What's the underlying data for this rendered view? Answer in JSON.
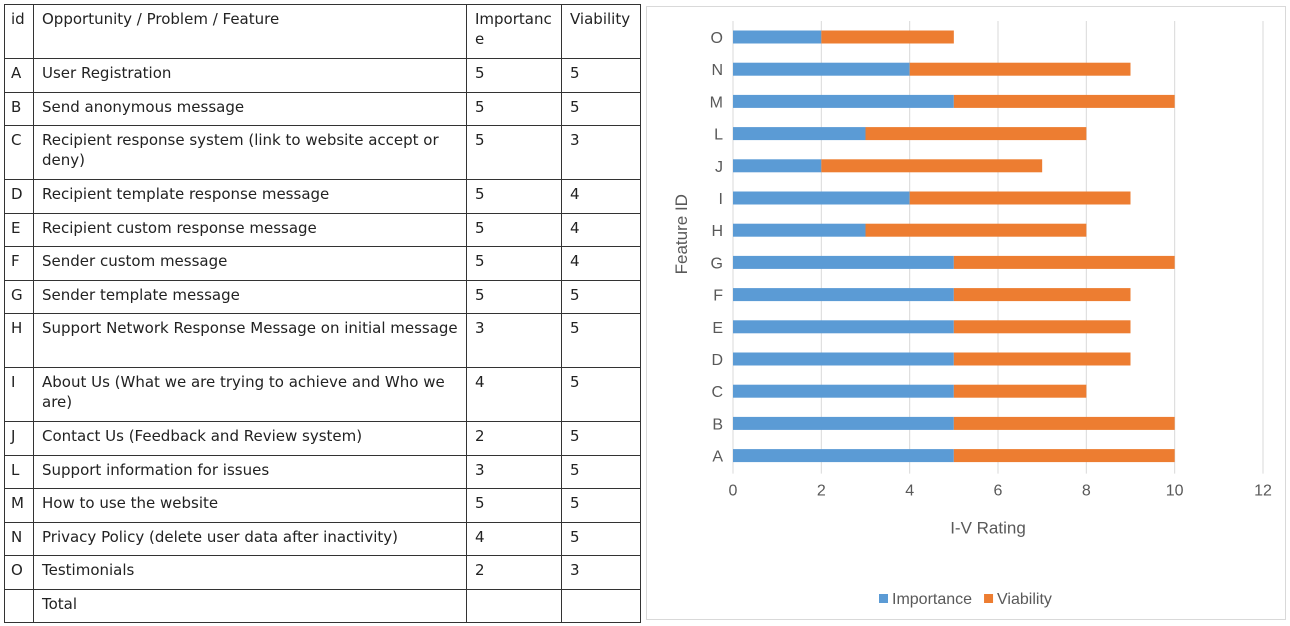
{
  "table": {
    "headers": [
      "id",
      "Opportunity / Problem / Feature",
      "Importance",
      "Viability"
    ],
    "rows": [
      {
        "id": "A",
        "feature": "User Registration",
        "importance": "5",
        "viability": "5"
      },
      {
        "id": "B",
        "feature": "Send anonymous message",
        "importance": "5",
        "viability": "5"
      },
      {
        "id": "C",
        "feature": "Recipient response system (link to website accept or deny)",
        "importance": "5",
        "viability": "3"
      },
      {
        "id": "D",
        "feature": "Recipient template response message",
        "importance": "5",
        "viability": "4"
      },
      {
        "id": "E",
        "feature": "Recipient custom response message",
        "importance": "5",
        "viability": "4"
      },
      {
        "id": "F",
        "feature": "Sender custom message",
        "importance": "5",
        "viability": "4"
      },
      {
        "id": "G",
        "feature": "Sender template message",
        "importance": "5",
        "viability": "5"
      },
      {
        "id": "H",
        "feature": "Support Network Response Message on initial message",
        "importance": "3",
        "viability": "5"
      },
      {
        "id": "I",
        "feature": "About Us (What we are trying to achieve and Who we are)",
        "importance": "4",
        "viability": "5"
      },
      {
        "id": "J",
        "feature": "Contact Us (Feedback and Review system)",
        "importance": "2",
        "viability": "5"
      },
      {
        "id": "L",
        "feature": "Support information for issues",
        "importance": "3",
        "viability": "5"
      },
      {
        "id": "M",
        "feature": "How to use the website",
        "importance": "5",
        "viability": "5"
      },
      {
        "id": "N",
        "feature": "Privacy Policy (delete user data after inactivity)",
        "importance": "4",
        "viability": "5"
      },
      {
        "id": "O",
        "feature": "Testimonials",
        "importance": "2",
        "viability": "3"
      }
    ],
    "total_label": "Total"
  },
  "chart_data": {
    "type": "bar",
    "orientation": "horizontal",
    "stacked": true,
    "categories": [
      "A",
      "B",
      "C",
      "D",
      "E",
      "F",
      "G",
      "H",
      "I",
      "J",
      "L",
      "M",
      "N",
      "O"
    ],
    "series": [
      {
        "name": "Importance",
        "color": "#5b9bd5",
        "values": [
          5,
          5,
          5,
          5,
          5,
          5,
          5,
          3,
          4,
          2,
          3,
          5,
          4,
          2
        ]
      },
      {
        "name": "Viability",
        "color": "#ed7d31",
        "values": [
          5,
          5,
          3,
          4,
          4,
          4,
          5,
          5,
          5,
          5,
          5,
          5,
          5,
          3
        ]
      }
    ],
    "xlabel": "I-V Rating",
    "ylabel": "Feature ID",
    "xlim": [
      0,
      12
    ],
    "xticks": [
      "0",
      "2",
      "4",
      "6",
      "8",
      "10",
      "12"
    ],
    "grid": true,
    "legend_position": "bottom"
  }
}
